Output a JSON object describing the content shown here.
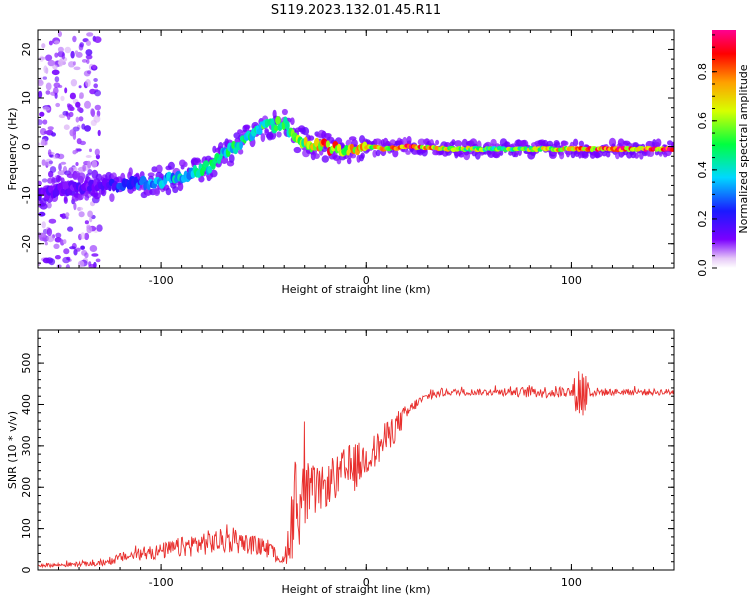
{
  "figure": {
    "title": "S119.2023.132.01.45.R11"
  },
  "chart_data": [
    {
      "type": "heatmap",
      "title": "",
      "xlabel": "Height of straight line (km)",
      "ylabel": "Frequency (Hz)",
      "xlim": [
        -160,
        150
      ],
      "ylim": [
        -25,
        24
      ],
      "xticks": [
        -100,
        0,
        100
      ],
      "yticks": [
        -20,
        -10,
        0,
        10,
        20
      ],
      "colorbar": {
        "label": "Normalized spectral amplitude",
        "range": [
          0,
          0.97
        ],
        "ticks": [
          0.0,
          0.2,
          0.4,
          0.6,
          0.8
        ],
        "colormap": "rainbow (violet-blue-cyan-green-yellow-red-magenta)"
      },
      "ridge": {
        "x": [
          -160,
          -140,
          -130,
          -120,
          -100,
          -80,
          -60,
          -50,
          -40,
          -35,
          -30,
          -20,
          -10,
          0,
          10,
          20,
          40,
          60,
          80,
          100,
          120,
          150
        ],
        "frequency": [
          -10,
          -8,
          -8,
          -8,
          -7,
          -5,
          1,
          4,
          5,
          2,
          1,
          0,
          -1,
          0,
          -0.5,
          0,
          -0.5,
          -0.5,
          -0.5,
          -0.5,
          -0.5,
          -0.5
        ],
        "amplitude": [
          0.15,
          0.15,
          0.15,
          0.25,
          0.35,
          0.45,
          0.45,
          0.5,
          0.5,
          0.55,
          0.6,
          0.8,
          0.7,
          0.7,
          0.7,
          0.9,
          0.7,
          0.55,
          0.6,
          0.75,
          0.85,
          0.85
        ]
      },
      "scatter_region": {
        "x": [
          -160,
          -130
        ],
        "frequency": [
          -25,
          24
        ],
        "amplitude": 0.1
      },
      "grid": false
    },
    {
      "type": "line",
      "title": "",
      "xlabel": "Height of straight line (km)",
      "ylabel": "SNR (10 * v/v)",
      "xlim": [
        -160,
        150
      ],
      "ylim": [
        0,
        580
      ],
      "xticks": [
        -100,
        0,
        100
      ],
      "yticks": [
        0,
        100,
        200,
        300,
        400,
        500
      ],
      "series": [
        {
          "color": "#e8302e",
          "x": [
            -160,
            -150,
            -140,
            -130,
            -125,
            -120,
            -110,
            -100,
            -90,
            -80,
            -70,
            -60,
            -50,
            -45,
            -40,
            -35,
            -30,
            -25,
            -20,
            -15,
            -10,
            -5,
            0,
            5,
            10,
            15,
            20,
            25,
            30,
            40,
            50,
            60,
            70,
            80,
            90,
            100,
            105,
            110,
            120,
            130,
            140,
            150
          ],
          "y": [
            12,
            12,
            14,
            15,
            20,
            30,
            38,
            45,
            55,
            65,
            70,
            65,
            55,
            40,
            20,
            150,
            180,
            190,
            200,
            220,
            240,
            250,
            270,
            290,
            320,
            350,
            380,
            405,
            420,
            430,
            430,
            430,
            430,
            430,
            430,
            430,
            430,
            430,
            430,
            430,
            430,
            430
          ],
          "noise": [
            5,
            5,
            6,
            6,
            8,
            12,
            15,
            20,
            25,
            30,
            30,
            25,
            22,
            18,
            10,
            120,
            90,
            60,
            50,
            50,
            60,
            60,
            40,
            45,
            40,
            35,
            20,
            12,
            10,
            8,
            8,
            8,
            10,
            14,
            15,
            15,
            90,
            12,
            8,
            8,
            8,
            8
          ]
        }
      ],
      "grid": false
    }
  ]
}
